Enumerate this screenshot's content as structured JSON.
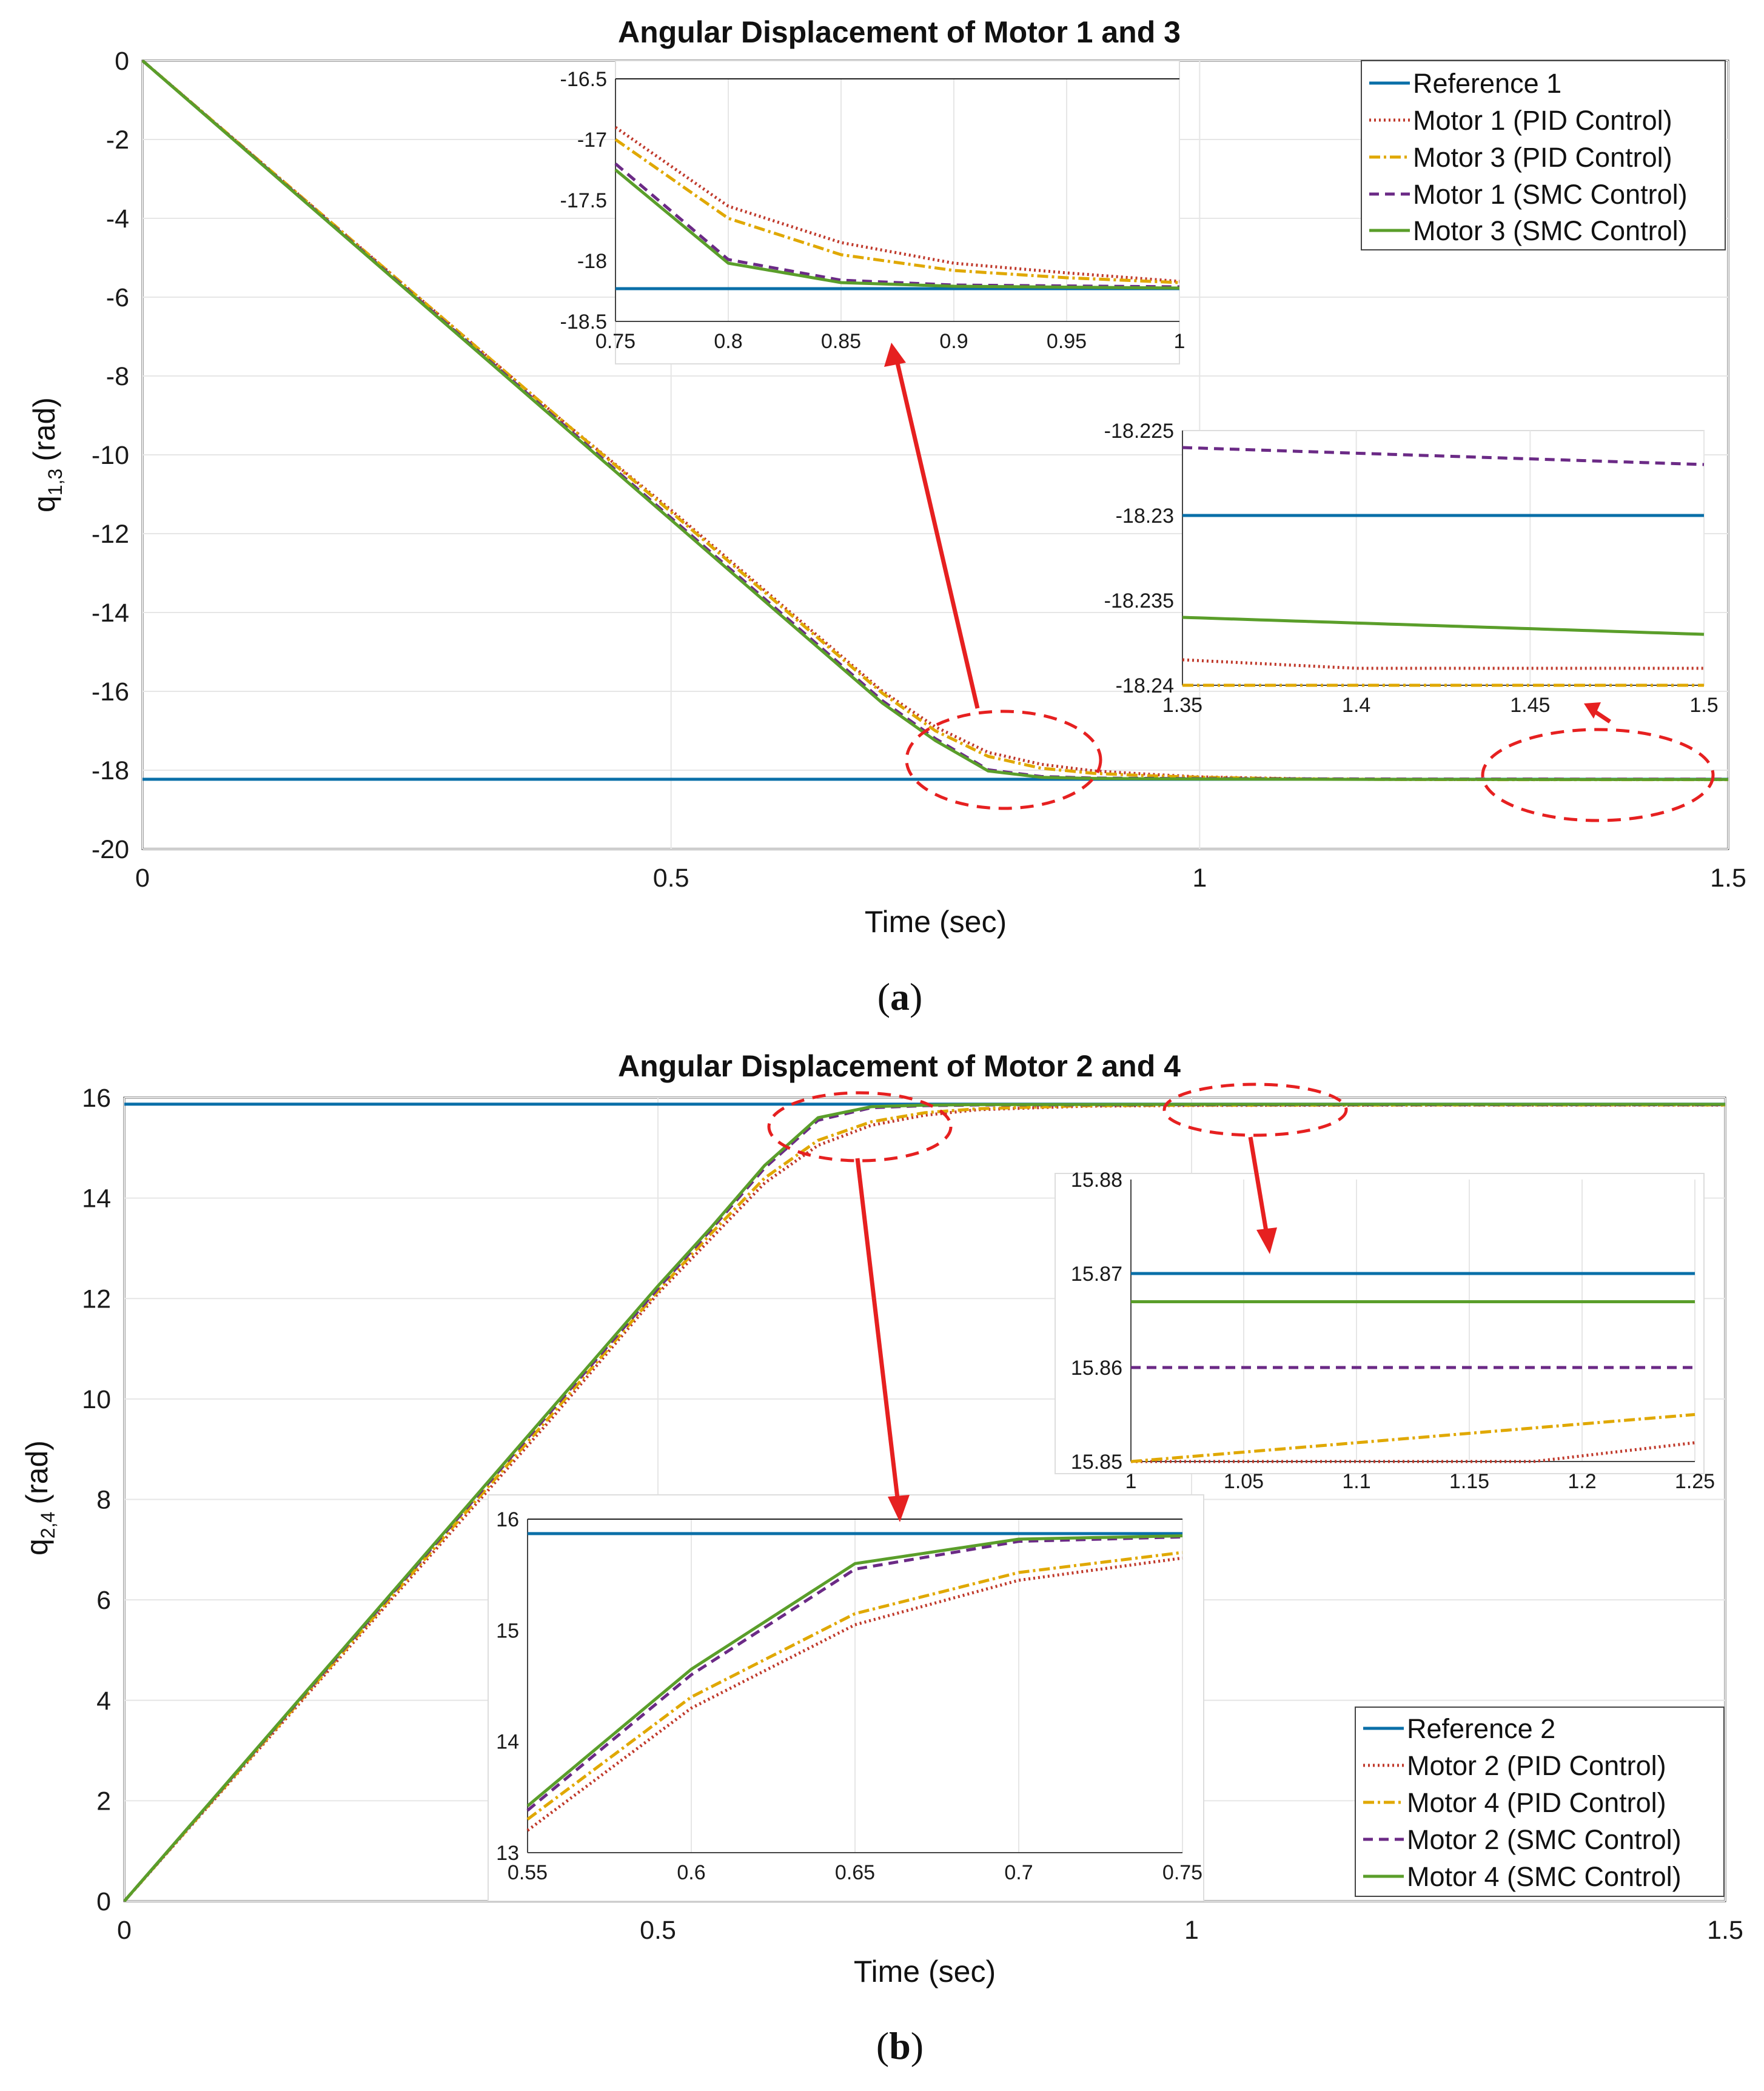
{
  "colors": {
    "reference": "#0a6fa8",
    "motor_a_pid": "#c0392b",
    "motor_b_pid": "#e0a800",
    "motor_a_smc": "#6b2a86",
    "motor_b_smc": "#5a9e2a",
    "annotation": "#e62020",
    "grid": "#e6e6e6",
    "axes": "#444444"
  },
  "chart_data": [
    {
      "id": "a",
      "type": "line",
      "caption_open": "(",
      "caption_letter": "a",
      "caption_close": ")",
      "title": "Angular Displacement of Motor 1 and 3",
      "xlabel": "Time (sec)",
      "ylabel_base": "q",
      "ylabel_sub": "1,3",
      "ylabel_unit": "(rad)",
      "xlim": [
        0,
        1.5
      ],
      "ylim": [
        -20,
        0
      ],
      "xticks": [
        0,
        0.5,
        1,
        1.5
      ],
      "xtick_labels": [
        "0",
        "0.5",
        "1",
        "1.5"
      ],
      "yticks": [
        0,
        -2,
        -4,
        -6,
        -8,
        -10,
        -12,
        -14,
        -16,
        -18,
        -20
      ],
      "ytick_labels": [
        "0",
        "-2",
        "-4",
        "-6",
        "-8",
        "-10",
        "-12",
        "-14",
        "-16",
        "-18",
        "-20"
      ],
      "legend_position": "top-right",
      "series": [
        {
          "name": "Reference 1",
          "style": "solid",
          "color_key": "reference",
          "x": [
            0,
            1.5
          ],
          "y": [
            -18.23,
            -18.23
          ]
        },
        {
          "name": "Motor 1 (PID Control)",
          "style": "dotted",
          "color_key": "motor_a_pid",
          "x": [
            0,
            0.1,
            0.2,
            0.3,
            0.4,
            0.5,
            0.6,
            0.7,
            0.75,
            0.8,
            0.85,
            0.9,
            0.95,
            1.0,
            1.1,
            1.2,
            1.3,
            1.4,
            1.5
          ],
          "y": [
            0,
            -2.3,
            -4.6,
            -6.9,
            -9.2,
            -11.4,
            -13.7,
            -16.0,
            -16.9,
            -17.55,
            -17.85,
            -18.02,
            -18.1,
            -18.17,
            -18.22,
            -18.235,
            -18.238,
            -18.239,
            -18.239
          ]
        },
        {
          "name": "Motor 3 (PID Control)",
          "style": "dashdot",
          "color_key": "motor_b_pid",
          "x": [
            0,
            0.1,
            0.2,
            0.3,
            0.4,
            0.5,
            0.6,
            0.7,
            0.75,
            0.8,
            0.85,
            0.9,
            0.95,
            1.0,
            1.1,
            1.2,
            1.3,
            1.4,
            1.5
          ],
          "y": [
            0,
            -2.3,
            -4.6,
            -6.9,
            -9.2,
            -11.45,
            -13.75,
            -16.05,
            -17.0,
            -17.65,
            -17.95,
            -18.08,
            -18.14,
            -18.18,
            -18.225,
            -18.237,
            -18.24,
            -18.24,
            -18.24
          ]
        },
        {
          "name": "Motor 1 (SMC Control)",
          "style": "dashed",
          "color_key": "motor_a_smc",
          "x": [
            0,
            0.1,
            0.2,
            0.3,
            0.4,
            0.5,
            0.6,
            0.7,
            0.75,
            0.8,
            0.85,
            0.9,
            1.0,
            1.2,
            1.5
          ],
          "y": [
            0,
            -2.32,
            -4.64,
            -6.96,
            -9.28,
            -11.6,
            -13.92,
            -16.24,
            -17.2,
            -17.99,
            -18.16,
            -18.2,
            -18.215,
            -18.225,
            -18.227
          ]
        },
        {
          "name": "Motor 3 (SMC Control)",
          "style": "solid",
          "color_key": "motor_b_smc",
          "x": [
            0,
            0.1,
            0.2,
            0.3,
            0.4,
            0.5,
            0.6,
            0.7,
            0.75,
            0.8,
            0.85,
            0.9,
            1.0,
            1.2,
            1.5
          ],
          "y": [
            0,
            -2.33,
            -4.66,
            -6.99,
            -9.32,
            -11.65,
            -13.98,
            -16.3,
            -17.25,
            -18.02,
            -18.18,
            -18.21,
            -18.225,
            -18.235,
            -18.237
          ]
        }
      ],
      "insets": [
        {
          "xlim": [
            0.75,
            1
          ],
          "ylim": [
            -18.5,
            -16.5
          ],
          "xticks": [
            0.75,
            0.8,
            0.85,
            0.9,
            0.95,
            1
          ],
          "xtick_labels": [
            "0.75",
            "0.8",
            "0.85",
            "0.9",
            "0.95",
            "1"
          ],
          "yticks": [
            -16.5,
            -17,
            -17.5,
            -18,
            -18.5
          ],
          "ytick_labels": [
            "-16.5",
            "-17",
            "-17.5",
            "-18",
            "-18.5"
          ]
        },
        {
          "xlim": [
            1.35,
            1.5
          ],
          "ylim": [
            -18.24,
            -18.225
          ],
          "xticks": [
            1.35,
            1.4,
            1.45,
            1.5
          ],
          "xtick_labels": [
            "1.35",
            "1.4",
            "1.45",
            "1.5"
          ],
          "yticks": [
            -18.225,
            -18.23,
            -18.235,
            -18.24
          ],
          "ytick_labels": [
            "-18.225",
            "-18.23",
            "-18.235",
            "-18.24"
          ]
        }
      ]
    },
    {
      "id": "b",
      "type": "line",
      "caption_open": "(",
      "caption_letter": "b",
      "caption_close": ")",
      "title": "Angular Displacement of Motor 2 and 4",
      "xlabel": "Time (sec)",
      "ylabel_base": "q",
      "ylabel_sub": "2,4",
      "ylabel_unit": "(rad)",
      "xlim": [
        0,
        1.5
      ],
      "ylim": [
        0,
        16
      ],
      "xticks": [
        0,
        0.5,
        1,
        1.5
      ],
      "xtick_labels": [
        "0",
        "0.5",
        "1",
        "1.5"
      ],
      "yticks": [
        0,
        2,
        4,
        6,
        8,
        10,
        12,
        14,
        16
      ],
      "ytick_labels": [
        "0",
        "2",
        "4",
        "6",
        "8",
        "10",
        "12",
        "14",
        "16"
      ],
      "legend_position": "bottom-right",
      "series": [
        {
          "name": "Reference 2",
          "style": "solid",
          "color_key": "reference",
          "x": [
            0,
            1.5
          ],
          "y": [
            15.87,
            15.87
          ]
        },
        {
          "name": "Motor 2 (PID Control)",
          "style": "dotted",
          "color_key": "motor_a_pid",
          "x": [
            0,
            0.1,
            0.2,
            0.3,
            0.4,
            0.5,
            0.55,
            0.6,
            0.65,
            0.7,
            0.75,
            0.8,
            0.9,
            1.0,
            1.25,
            1.5
          ],
          "y": [
            0,
            2.4,
            4.8,
            7.2,
            9.6,
            12.1,
            13.2,
            14.3,
            15.05,
            15.45,
            15.65,
            15.76,
            15.83,
            15.845,
            15.852,
            15.852
          ]
        },
        {
          "name": "Motor 4 (PID Control)",
          "style": "dashdot",
          "color_key": "motor_b_pid",
          "x": [
            0,
            0.1,
            0.2,
            0.3,
            0.4,
            0.5,
            0.55,
            0.6,
            0.65,
            0.7,
            0.75,
            0.8,
            0.9,
            1.0,
            1.25,
            1.5
          ],
          "y": [
            0,
            2.42,
            4.84,
            7.26,
            9.68,
            12.15,
            13.3,
            14.4,
            15.15,
            15.52,
            15.7,
            15.78,
            15.84,
            15.85,
            15.855,
            15.855
          ]
        },
        {
          "name": "Motor 2 (SMC Control)",
          "style": "dashed",
          "color_key": "motor_a_smc",
          "x": [
            0,
            0.1,
            0.2,
            0.3,
            0.4,
            0.5,
            0.55,
            0.6,
            0.65,
            0.7,
            0.75,
            0.8,
            1.0,
            1.25,
            1.5
          ],
          "y": [
            0,
            2.44,
            4.88,
            7.32,
            9.76,
            12.2,
            13.38,
            14.6,
            15.55,
            15.8,
            15.84,
            15.855,
            15.86,
            15.86,
            15.86
          ]
        },
        {
          "name": "Motor 4 (SMC Control)",
          "style": "solid",
          "color_key": "motor_b_smc",
          "x": [
            0,
            0.1,
            0.2,
            0.3,
            0.4,
            0.5,
            0.55,
            0.6,
            0.65,
            0.7,
            0.75,
            0.8,
            1.0,
            1.25,
            1.5
          ],
          "y": [
            0,
            2.45,
            4.9,
            7.35,
            9.8,
            12.25,
            13.42,
            14.65,
            15.6,
            15.82,
            15.85,
            15.862,
            15.867,
            15.867,
            15.867
          ]
        }
      ],
      "insets": [
        {
          "xlim": [
            1,
            1.25
          ],
          "ylim": [
            15.85,
            15.88
          ],
          "xticks": [
            1,
            1.05,
            1.1,
            1.15,
            1.2,
            1.25
          ],
          "xtick_labels": [
            "1",
            "1.05",
            "1.1",
            "1.15",
            "1.2",
            "1.25"
          ],
          "yticks": [
            15.88,
            15.87,
            15.86,
            15.85
          ],
          "ytick_labels": [
            "15.88",
            "15.87",
            "15.86",
            "15.85"
          ]
        },
        {
          "xlim": [
            0.55,
            0.75
          ],
          "ylim": [
            13,
            16
          ],
          "xticks": [
            0.55,
            0.6,
            0.65,
            0.7,
            0.75
          ],
          "xtick_labels": [
            "0.55",
            "0.6",
            "0.65",
            "0.7",
            "0.75"
          ],
          "yticks": [
            16,
            15,
            14,
            13
          ],
          "ytick_labels": [
            "16",
            "15",
            "14",
            "13"
          ]
        }
      ]
    }
  ]
}
